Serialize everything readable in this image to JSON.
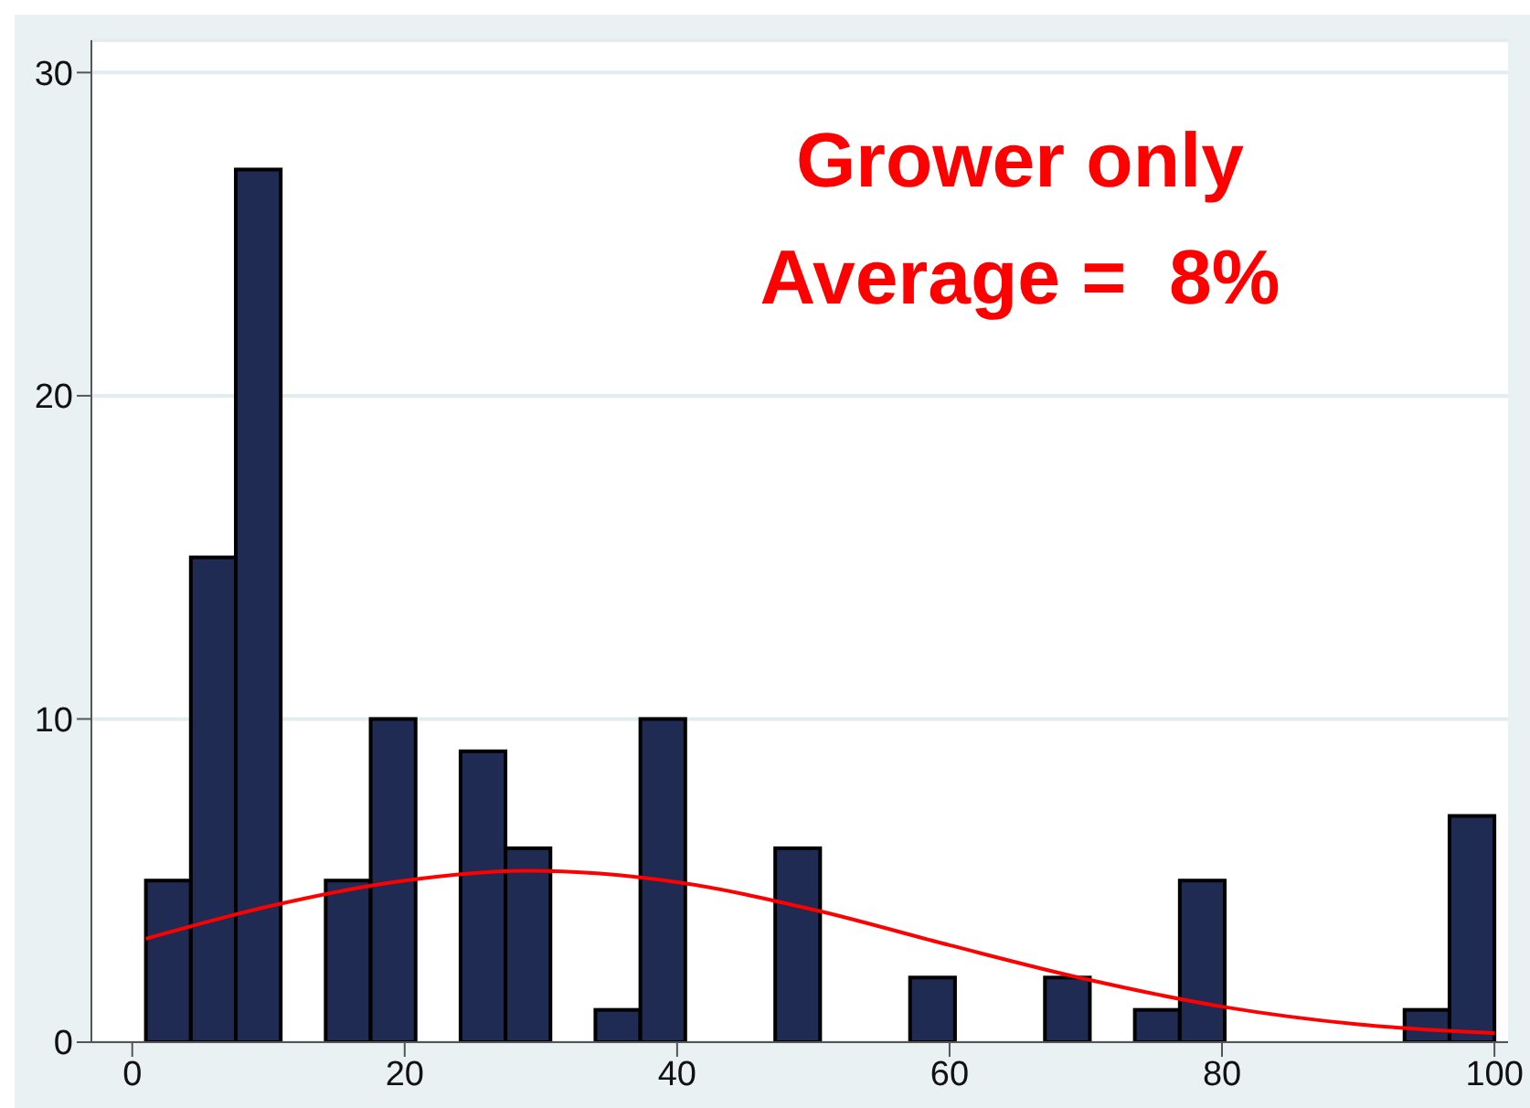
{
  "chart_data": {
    "type": "histogram",
    "annotations": [
      "Grower only",
      "Average =  8%"
    ],
    "xlim": [
      -3,
      101
    ],
    "xticks": [
      0,
      20,
      40,
      60,
      80,
      100
    ],
    "ylim": [
      0,
      31
    ],
    "yticks": [
      0,
      10,
      20,
      30
    ],
    "grid": "y",
    "series": [
      {
        "color": "#1f2b52",
        "bins": [
          1,
          4.3,
          7.6,
          10.9,
          14.2,
          17.5,
          20.8,
          24.1,
          27.4,
          30.7,
          34,
          37.3,
          40.6,
          43.9,
          47.2,
          50.5,
          53.8,
          57.1,
          60.4,
          63.7,
          67,
          70.3,
          73.6,
          76.9,
          80.2,
          83.5,
          86.8,
          90.1,
          93.4,
          96.7,
          100
        ],
        "values": [
          5,
          15,
          27,
          0,
          5,
          10,
          0,
          9,
          6,
          0,
          1,
          10,
          0,
          0,
          6,
          0,
          0,
          2,
          0,
          0,
          2,
          0,
          1,
          5,
          0,
          0,
          0,
          0,
          1,
          7
        ]
      },
      {
        "type": "line",
        "color": "#ff0000",
        "x": [
          1,
          10,
          20,
          29,
          40,
          50,
          60,
          70,
          80,
          90,
          100
        ],
        "values": [
          3.2,
          4.2,
          5.0,
          5.3,
          4.95,
          4.1,
          3.0,
          1.95,
          1.1,
          0.55,
          0.28
        ]
      }
    ]
  }
}
